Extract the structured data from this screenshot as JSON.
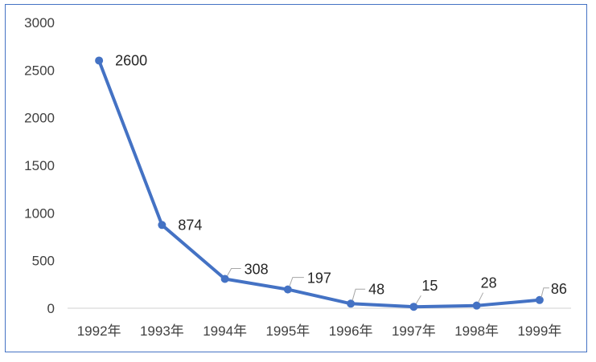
{
  "chart_data": {
    "type": "line",
    "title": "",
    "xlabel": "",
    "ylabel": "",
    "categories": [
      "1992年",
      "1993年",
      "1994年",
      "1995年",
      "1996年",
      "1997年",
      "1998年",
      "1999年"
    ],
    "series": [
      {
        "values": [
          2600,
          874,
          308,
          197,
          48,
          15,
          28,
          86
        ],
        "color": "#4472c4"
      }
    ],
    "data_labels": [
      "2600",
      "874",
      "308",
      "197",
      "48",
      "15",
      "28",
      "86"
    ],
    "ylim": [
      0,
      3000
    ],
    "yticks": [
      "0",
      "500",
      "1000",
      "1500",
      "2000",
      "2500",
      "3000"
    ],
    "grid": false,
    "legend": "none",
    "colors": {
      "line": "#4472c4",
      "frame": "#4472c4",
      "axis": "#d9d9d9",
      "leader": "#a6a6a6"
    }
  }
}
